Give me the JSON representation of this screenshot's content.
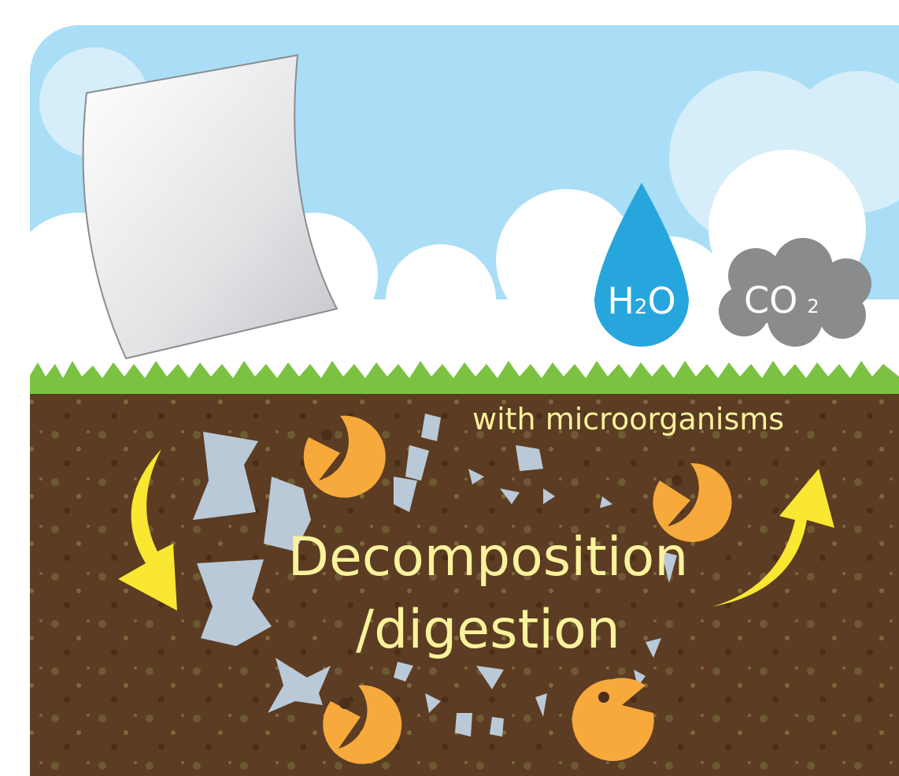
{
  "water": {
    "parts": [
      "H",
      "2",
      "O"
    ]
  },
  "carbon_dioxide": {
    "parts": [
      "CO",
      "2"
    ]
  },
  "process": {
    "agent": "with microorganisms",
    "lines": [
      "Decomposition",
      "/digestion"
    ]
  }
}
